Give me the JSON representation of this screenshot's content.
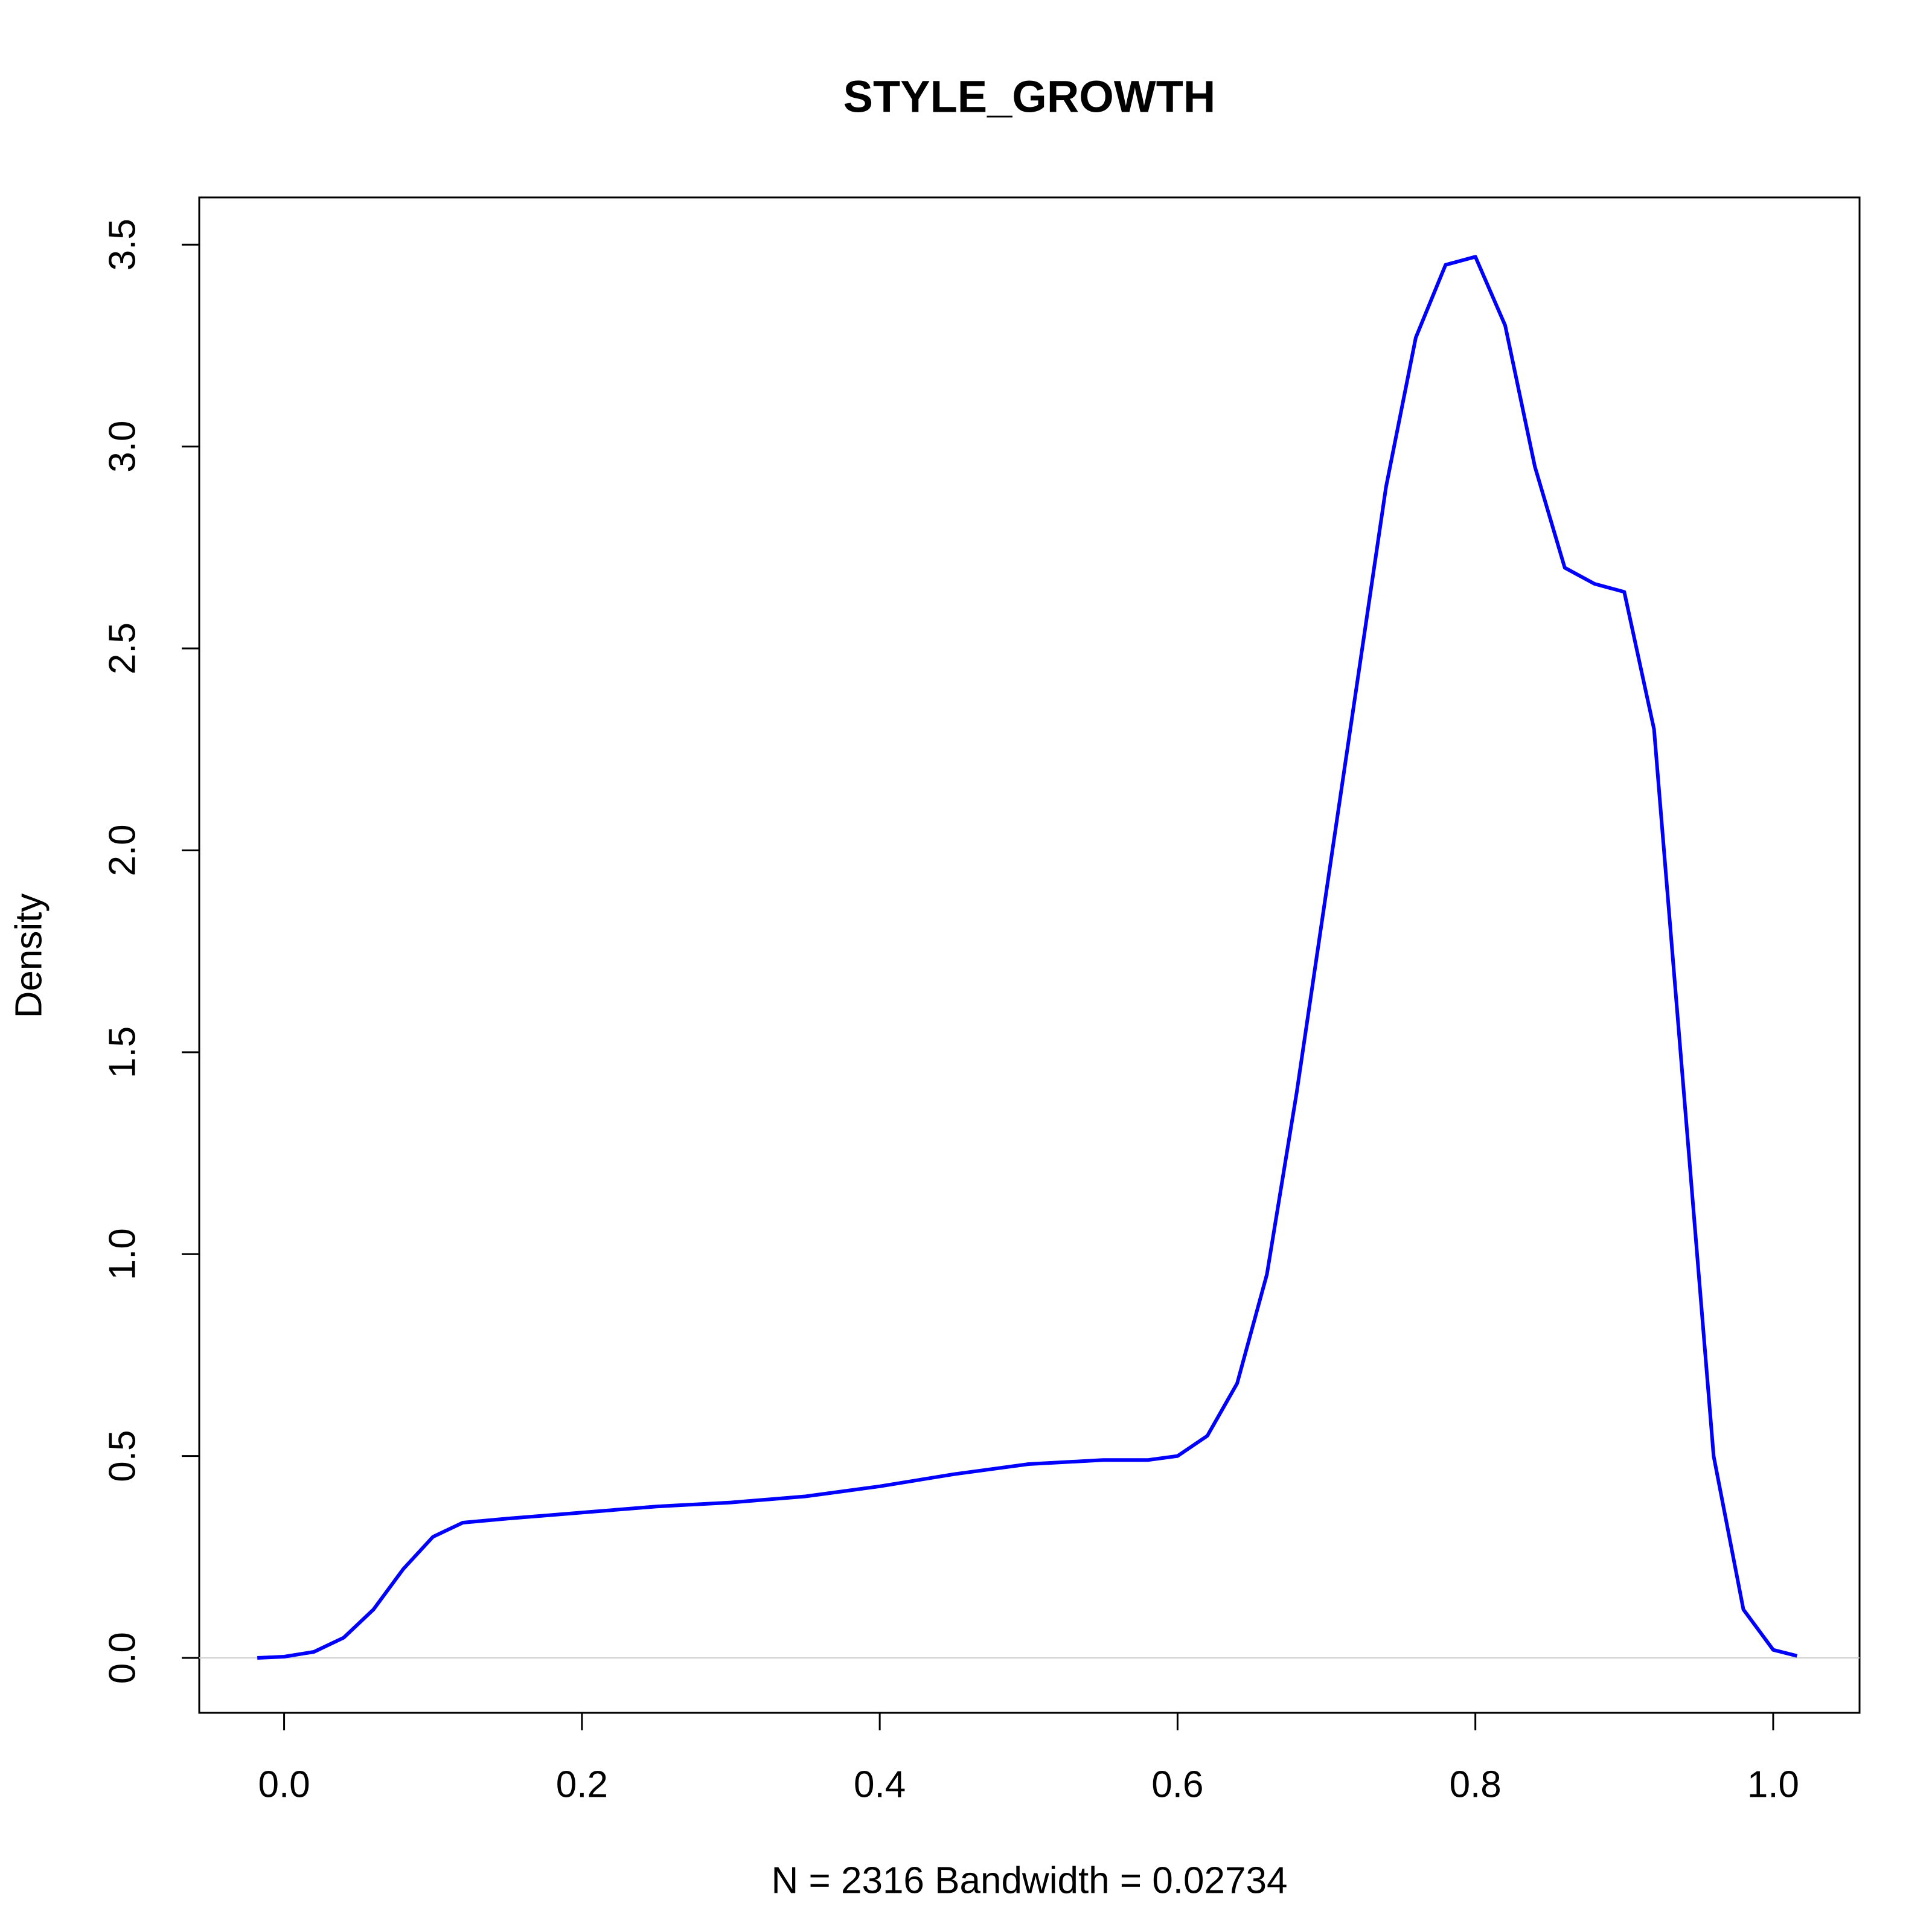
{
  "chart_data": {
    "type": "line",
    "title": "STYLE_GROWTH",
    "ylabel": "Density",
    "xlabel": "N = 2316   Bandwidth = 0.02734",
    "x": [
      -0.018,
      0.0,
      0.02,
      0.04,
      0.06,
      0.08,
      0.1,
      0.12,
      0.15,
      0.2,
      0.25,
      0.3,
      0.35,
      0.4,
      0.45,
      0.5,
      0.55,
      0.58,
      0.6,
      0.62,
      0.64,
      0.66,
      0.68,
      0.7,
      0.72,
      0.74,
      0.76,
      0.78,
      0.8,
      0.82,
      0.84,
      0.86,
      0.88,
      0.9,
      0.92,
      0.94,
      0.96,
      0.98,
      1.0,
      1.016
    ],
    "values": [
      0,
      0.003,
      0.015,
      0.05,
      0.12,
      0.22,
      0.3,
      0.335,
      0.345,
      0.36,
      0.375,
      0.385,
      0.4,
      0.425,
      0.455,
      0.48,
      0.49,
      0.49,
      0.5,
      0.55,
      0.68,
      0.95,
      1.4,
      1.9,
      2.4,
      2.9,
      3.27,
      3.45,
      3.47,
      3.3,
      2.95,
      2.7,
      2.66,
      2.64,
      2.3,
      1.4,
      0.5,
      0.12,
      0.02,
      0.005
    ],
    "color": "#0000ff",
    "zero_line": true,
    "xlim": [
      -0.057,
      1.058
    ],
    "ylim": [
      -0.136,
      3.617
    ],
    "xticks": [
      {
        "value": 0,
        "label": "0.0"
      },
      0.2,
      0.4,
      0.6,
      0.8,
      {
        "value": 1,
        "label": "1.0"
      }
    ],
    "yticks": [
      {
        "value": 0,
        "label": "0.0"
      },
      0.5,
      {
        "value": 1,
        "label": "1.0"
      },
      1.5,
      {
        "value": 2,
        "label": "2.0"
      },
      2.5,
      {
        "value": 3,
        "label": "3.0"
      },
      3.5
    ]
  }
}
